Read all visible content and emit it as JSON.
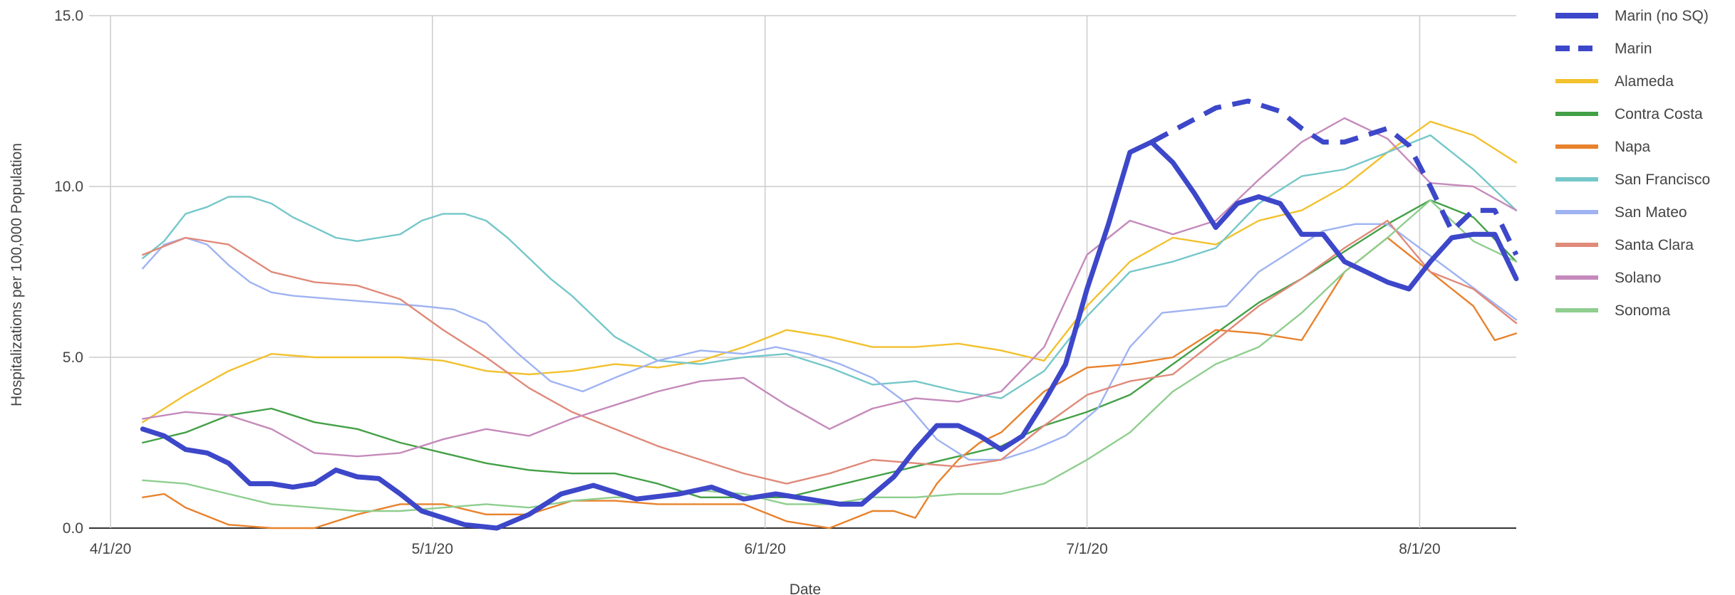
{
  "chart_data": {
    "type": "line",
    "title": "",
    "xlabel": "Date",
    "ylabel": "Hospitalizations per 100,000 Population",
    "x_range": [
      "2020-03-30",
      "2020-08-10"
    ],
    "ylim": [
      0,
      15
    ],
    "x_ticks": [
      {
        "date": "2020-04-01",
        "label": "4/1/20"
      },
      {
        "date": "2020-05-01",
        "label": "5/1/20"
      },
      {
        "date": "2020-06-01",
        "label": "6/1/20"
      },
      {
        "date": "2020-07-01",
        "label": "7/1/20"
      },
      {
        "date": "2020-08-01",
        "label": "8/1/20"
      }
    ],
    "y_ticks": [
      {
        "value": 0,
        "label": "0.0"
      },
      {
        "value": 5,
        "label": "5.0"
      },
      {
        "value": 10,
        "label": "10.0"
      },
      {
        "value": 15,
        "label": "15.0"
      }
    ],
    "grid": true,
    "legend_position": "right",
    "series": [
      {
        "name": "Marin (no SQ)",
        "color": "#3d47c9",
        "dashed": false,
        "bold": true,
        "x": [
          "2020-04-04",
          "2020-04-06",
          "2020-04-08",
          "2020-04-10",
          "2020-04-12",
          "2020-04-14",
          "2020-04-16",
          "2020-04-18",
          "2020-04-20",
          "2020-04-22",
          "2020-04-24",
          "2020-04-26",
          "2020-04-28",
          "2020-04-30",
          "2020-05-02",
          "2020-05-04",
          "2020-05-07",
          "2020-05-10",
          "2020-05-13",
          "2020-05-16",
          "2020-05-20",
          "2020-05-24",
          "2020-05-27",
          "2020-05-30",
          "2020-06-02",
          "2020-06-05",
          "2020-06-08",
          "2020-06-10",
          "2020-06-13",
          "2020-06-15",
          "2020-06-17",
          "2020-06-19",
          "2020-06-21",
          "2020-06-23",
          "2020-06-25",
          "2020-06-27",
          "2020-06-29",
          "2020-07-01",
          "2020-07-03",
          "2020-07-05",
          "2020-07-07",
          "2020-07-09",
          "2020-07-11",
          "2020-07-13",
          "2020-07-15",
          "2020-07-17",
          "2020-07-19",
          "2020-07-21",
          "2020-07-23",
          "2020-07-25",
          "2020-07-27",
          "2020-07-29",
          "2020-07-31",
          "2020-08-02",
          "2020-08-04",
          "2020-08-06",
          "2020-08-08",
          "2020-08-10"
        ],
        "y": [
          2.9,
          2.7,
          2.3,
          2.2,
          1.9,
          1.3,
          1.3,
          1.2,
          1.3,
          1.7,
          1.5,
          1.45,
          1.0,
          0.5,
          0.3,
          0.1,
          0.0,
          0.4,
          1.0,
          1.25,
          0.85,
          1.0,
          1.2,
          0.85,
          1.0,
          0.85,
          0.7,
          0.7,
          1.5,
          2.3,
          3.0,
          3.0,
          2.7,
          2.3,
          2.7,
          3.7,
          4.8,
          7.0,
          8.9,
          11.0,
          11.3,
          10.7,
          9.8,
          8.8,
          9.5,
          9.7,
          9.5,
          8.6,
          8.6,
          7.8,
          7.5,
          7.2,
          7.0,
          7.8,
          8.5,
          8.6,
          8.6,
          7.3
        ]
      },
      {
        "name": "Marin",
        "color": "#3d47c9",
        "dashed": true,
        "bold": true,
        "x": [
          "2020-07-07",
          "2020-07-10",
          "2020-07-13",
          "2020-07-16",
          "2020-07-19",
          "2020-07-21",
          "2020-07-23",
          "2020-07-25",
          "2020-07-27",
          "2020-07-29",
          "2020-07-31",
          "2020-08-02",
          "2020-08-04",
          "2020-08-06",
          "2020-08-08",
          "2020-08-10"
        ],
        "y": [
          11.3,
          11.8,
          12.3,
          12.5,
          12.2,
          11.7,
          11.3,
          11.3,
          11.5,
          11.7,
          11.2,
          10.0,
          8.7,
          9.3,
          9.3,
          8.0
        ]
      },
      {
        "name": "Alameda",
        "color": "#f2c12e",
        "dashed": false,
        "bold": false,
        "x": [
          "2020-04-04",
          "2020-04-08",
          "2020-04-12",
          "2020-04-16",
          "2020-04-20",
          "2020-04-24",
          "2020-04-28",
          "2020-05-02",
          "2020-05-06",
          "2020-05-10",
          "2020-05-14",
          "2020-05-18",
          "2020-05-22",
          "2020-05-26",
          "2020-05-30",
          "2020-06-03",
          "2020-06-07",
          "2020-06-11",
          "2020-06-15",
          "2020-06-19",
          "2020-06-23",
          "2020-06-27",
          "2020-07-01",
          "2020-07-05",
          "2020-07-09",
          "2020-07-13",
          "2020-07-17",
          "2020-07-21",
          "2020-07-25",
          "2020-07-29",
          "2020-08-02",
          "2020-08-06",
          "2020-08-10"
        ],
        "y": [
          3.1,
          3.9,
          4.6,
          5.1,
          5.0,
          5.0,
          5.0,
          4.9,
          4.6,
          4.5,
          4.6,
          4.8,
          4.7,
          4.9,
          5.3,
          5.8,
          5.6,
          5.3,
          5.3,
          5.4,
          5.2,
          4.9,
          6.5,
          7.8,
          8.5,
          8.3,
          9.0,
          9.3,
          10.0,
          11.0,
          11.9,
          11.5,
          10.7
        ]
      },
      {
        "name": "Contra Costa",
        "color": "#43a047",
        "dashed": false,
        "bold": false,
        "x": [
          "2020-04-04",
          "2020-04-08",
          "2020-04-12",
          "2020-04-16",
          "2020-04-20",
          "2020-04-24",
          "2020-04-28",
          "2020-05-02",
          "2020-05-06",
          "2020-05-10",
          "2020-05-14",
          "2020-05-18",
          "2020-05-22",
          "2020-05-26",
          "2020-05-30",
          "2020-06-03",
          "2020-06-07",
          "2020-06-11",
          "2020-06-15",
          "2020-06-19",
          "2020-06-23",
          "2020-06-27",
          "2020-07-01",
          "2020-07-05",
          "2020-07-09",
          "2020-07-13",
          "2020-07-17",
          "2020-07-21",
          "2020-07-25",
          "2020-07-29",
          "2020-08-02",
          "2020-08-06",
          "2020-08-10"
        ],
        "y": [
          2.5,
          2.8,
          3.3,
          3.5,
          3.1,
          2.9,
          2.5,
          2.2,
          1.9,
          1.7,
          1.6,
          1.6,
          1.3,
          0.9,
          0.9,
          0.9,
          1.2,
          1.5,
          1.8,
          2.1,
          2.4,
          3.0,
          3.4,
          3.9,
          4.8,
          5.7,
          6.6,
          7.3,
          8.1,
          8.9,
          9.6,
          9.1,
          7.8
        ]
      },
      {
        "name": "Napa",
        "color": "#e8822c",
        "dashed": false,
        "bold": false,
        "x": [
          "2020-04-04",
          "2020-04-06",
          "2020-04-08",
          "2020-04-12",
          "2020-04-16",
          "2020-04-20",
          "2020-04-24",
          "2020-04-28",
          "2020-05-02",
          "2020-05-06",
          "2020-05-10",
          "2020-05-14",
          "2020-05-18",
          "2020-05-22",
          "2020-05-26",
          "2020-05-30",
          "2020-06-03",
          "2020-06-07",
          "2020-06-11",
          "2020-06-13",
          "2020-06-15",
          "2020-06-17",
          "2020-06-19",
          "2020-06-21",
          "2020-06-23",
          "2020-06-27",
          "2020-07-01",
          "2020-07-05",
          "2020-07-09",
          "2020-07-13",
          "2020-07-17",
          "2020-07-21",
          "2020-07-25",
          "2020-07-29",
          "2020-08-02",
          "2020-08-06",
          "2020-08-08",
          "2020-08-10"
        ],
        "y": [
          0.9,
          1.0,
          0.6,
          0.1,
          0.0,
          0.0,
          0.4,
          0.7,
          0.7,
          0.4,
          0.4,
          0.8,
          0.8,
          0.7,
          0.7,
          0.7,
          0.2,
          0.0,
          0.5,
          0.5,
          0.3,
          1.3,
          2.0,
          2.5,
          2.8,
          4.0,
          4.7,
          4.8,
          5.0,
          5.8,
          5.7,
          5.5,
          7.5,
          8.5,
          7.5,
          6.5,
          5.5,
          5.7
        ]
      },
      {
        "name": "San Francisco",
        "color": "#75c7c9",
        "dashed": false,
        "bold": false,
        "x": [
          "2020-04-04",
          "2020-04-06",
          "2020-04-08",
          "2020-04-10",
          "2020-04-12",
          "2020-04-14",
          "2020-04-16",
          "2020-04-18",
          "2020-04-20",
          "2020-04-22",
          "2020-04-24",
          "2020-04-26",
          "2020-04-28",
          "2020-04-30",
          "2020-05-02",
          "2020-05-04",
          "2020-05-06",
          "2020-05-08",
          "2020-05-10",
          "2020-05-12",
          "2020-05-14",
          "2020-05-18",
          "2020-05-22",
          "2020-05-26",
          "2020-05-30",
          "2020-06-03",
          "2020-06-07",
          "2020-06-11",
          "2020-06-15",
          "2020-06-19",
          "2020-06-23",
          "2020-06-27",
          "2020-07-01",
          "2020-07-05",
          "2020-07-09",
          "2020-07-13",
          "2020-07-17",
          "2020-07-21",
          "2020-07-25",
          "2020-07-29",
          "2020-08-02",
          "2020-08-06",
          "2020-08-10"
        ],
        "y": [
          7.9,
          8.4,
          9.2,
          9.4,
          9.7,
          9.7,
          9.5,
          9.1,
          8.8,
          8.5,
          8.4,
          8.5,
          8.6,
          9.0,
          9.2,
          9.2,
          9.0,
          8.5,
          7.9,
          7.3,
          6.8,
          5.6,
          4.9,
          4.8,
          5.0,
          5.1,
          4.7,
          4.2,
          4.3,
          4.0,
          3.8,
          4.6,
          6.2,
          7.5,
          7.8,
          8.2,
          9.5,
          10.3,
          10.5,
          11.0,
          11.5,
          10.5,
          9.3
        ]
      },
      {
        "name": "San Mateo",
        "color": "#9fb3f2",
        "dashed": false,
        "bold": false,
        "x": [
          "2020-04-04",
          "2020-04-06",
          "2020-04-08",
          "2020-04-10",
          "2020-04-12",
          "2020-04-14",
          "2020-04-16",
          "2020-04-18",
          "2020-04-22",
          "2020-04-26",
          "2020-04-30",
          "2020-05-03",
          "2020-05-06",
          "2020-05-09",
          "2020-05-12",
          "2020-05-15",
          "2020-05-18",
          "2020-05-22",
          "2020-05-26",
          "2020-05-30",
          "2020-06-02",
          "2020-06-05",
          "2020-06-08",
          "2020-06-11",
          "2020-06-14",
          "2020-06-17",
          "2020-06-20",
          "2020-06-23",
          "2020-06-26",
          "2020-06-29",
          "2020-07-02",
          "2020-07-05",
          "2020-07-08",
          "2020-07-11",
          "2020-07-14",
          "2020-07-17",
          "2020-07-20",
          "2020-07-23",
          "2020-07-26",
          "2020-07-29",
          "2020-08-01",
          "2020-08-04",
          "2020-08-07",
          "2020-08-10"
        ],
        "y": [
          7.6,
          8.3,
          8.5,
          8.3,
          7.7,
          7.2,
          6.9,
          6.8,
          6.7,
          6.6,
          6.5,
          6.4,
          6.0,
          5.1,
          4.3,
          4.0,
          4.4,
          4.9,
          5.2,
          5.1,
          5.3,
          5.1,
          4.8,
          4.4,
          3.7,
          2.6,
          2.0,
          2.0,
          2.3,
          2.7,
          3.5,
          5.3,
          6.3,
          6.4,
          6.5,
          7.5,
          8.1,
          8.7,
          8.9,
          8.9,
          8.2,
          7.5,
          6.8,
          6.1
        ]
      },
      {
        "name": "Santa Clara",
        "color": "#e08a7a",
        "dashed": false,
        "bold": false,
        "x": [
          "2020-04-04",
          "2020-04-08",
          "2020-04-12",
          "2020-04-16",
          "2020-04-20",
          "2020-04-24",
          "2020-04-28",
          "2020-05-02",
          "2020-05-06",
          "2020-05-10",
          "2020-05-14",
          "2020-05-18",
          "2020-05-22",
          "2020-05-26",
          "2020-05-30",
          "2020-06-03",
          "2020-06-07",
          "2020-06-11",
          "2020-06-15",
          "2020-06-19",
          "2020-06-23",
          "2020-06-27",
          "2020-07-01",
          "2020-07-05",
          "2020-07-09",
          "2020-07-13",
          "2020-07-17",
          "2020-07-21",
          "2020-07-25",
          "2020-07-29",
          "2020-08-02",
          "2020-08-06",
          "2020-08-10"
        ],
        "y": [
          8.0,
          8.5,
          8.3,
          7.5,
          7.2,
          7.1,
          6.7,
          5.8,
          5.0,
          4.1,
          3.4,
          2.9,
          2.4,
          2.0,
          1.6,
          1.3,
          1.6,
          2.0,
          1.9,
          1.8,
          2.0,
          3.0,
          3.9,
          4.3,
          4.5,
          5.5,
          6.5,
          7.3,
          8.2,
          9.0,
          7.5,
          7.0,
          6.0
        ]
      },
      {
        "name": "Solano",
        "color": "#c58abb",
        "dashed": false,
        "bold": false,
        "x": [
          "2020-04-04",
          "2020-04-08",
          "2020-04-12",
          "2020-04-16",
          "2020-04-20",
          "2020-04-24",
          "2020-04-28",
          "2020-05-02",
          "2020-05-06",
          "2020-05-10",
          "2020-05-14",
          "2020-05-18",
          "2020-05-22",
          "2020-05-26",
          "2020-05-30",
          "2020-06-03",
          "2020-06-07",
          "2020-06-11",
          "2020-06-15",
          "2020-06-19",
          "2020-06-23",
          "2020-06-27",
          "2020-07-01",
          "2020-07-05",
          "2020-07-09",
          "2020-07-13",
          "2020-07-17",
          "2020-07-21",
          "2020-07-25",
          "2020-07-29",
          "2020-08-02",
          "2020-08-06",
          "2020-08-10"
        ],
        "y": [
          3.2,
          3.4,
          3.3,
          2.9,
          2.2,
          2.1,
          2.2,
          2.6,
          2.9,
          2.7,
          3.2,
          3.6,
          4.0,
          4.3,
          4.4,
          3.6,
          2.9,
          3.5,
          3.8,
          3.7,
          4.0,
          5.3,
          8.0,
          9.0,
          8.6,
          9.0,
          10.2,
          11.3,
          12.0,
          11.4,
          10.1,
          10.0,
          9.3
        ]
      },
      {
        "name": "Sonoma",
        "color": "#8fce8f",
        "dashed": false,
        "bold": false,
        "x": [
          "2020-04-04",
          "2020-04-08",
          "2020-04-12",
          "2020-04-16",
          "2020-04-20",
          "2020-04-24",
          "2020-04-28",
          "2020-05-02",
          "2020-05-06",
          "2020-05-10",
          "2020-05-14",
          "2020-05-18",
          "2020-05-22",
          "2020-05-26",
          "2020-05-30",
          "2020-06-03",
          "2020-06-07",
          "2020-06-11",
          "2020-06-15",
          "2020-06-19",
          "2020-06-23",
          "2020-06-27",
          "2020-07-01",
          "2020-07-05",
          "2020-07-09",
          "2020-07-13",
          "2020-07-17",
          "2020-07-21",
          "2020-07-25",
          "2020-07-29",
          "2020-08-02",
          "2020-08-06",
          "2020-08-10"
        ],
        "y": [
          1.4,
          1.3,
          1.0,
          0.7,
          0.6,
          0.5,
          0.5,
          0.6,
          0.7,
          0.6,
          0.8,
          0.9,
          0.9,
          1.1,
          1.0,
          0.7,
          0.7,
          0.9,
          0.9,
          1.0,
          1.0,
          1.3,
          2.0,
          2.8,
          4.0,
          4.8,
          5.3,
          6.3,
          7.5,
          8.5,
          9.6,
          8.4,
          7.8
        ]
      }
    ]
  }
}
